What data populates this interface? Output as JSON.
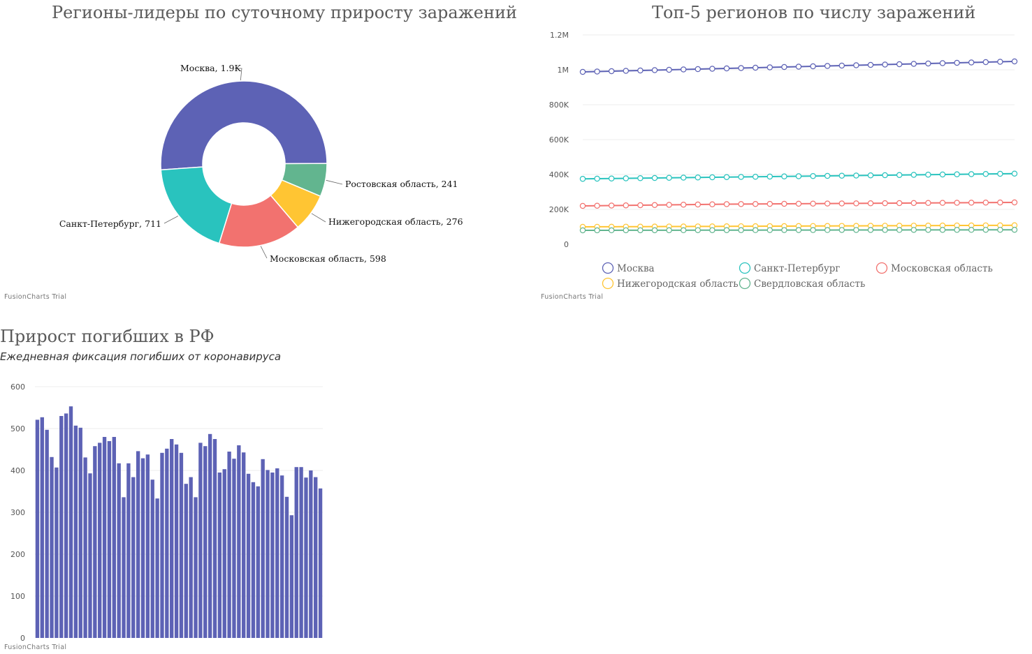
{
  "charts": {
    "donut": {
      "title": "Регионы-лидеры по суточному приросту заражений",
      "trial": "FusionCharts Trial"
    },
    "line": {
      "title": "Топ-5 регионов по числу заражений",
      "trial": "FusionCharts Trial"
    },
    "bar": {
      "title": "Прирост погибших в РФ",
      "subtitle": "Ежедневная фиксация погибших от коронавируса",
      "trial": "FusionCharts Trial"
    }
  },
  "chart_data": [
    {
      "type": "pie",
      "variant": "doughnut",
      "title": "Регионы-лидеры по суточному приросту заражений",
      "slices": [
        {
          "label": "Москва",
          "value": 1900,
          "display": "Москва, 1.9K",
          "color": "#5d62b5"
        },
        {
          "label": "Ростовская область",
          "value": 241,
          "display": "Ростовская область, 241",
          "color": "#62b58f"
        },
        {
          "label": "Нижегородская область",
          "value": 276,
          "display": "Нижегородская область, 276",
          "color": "#ffc533"
        },
        {
          "label": "Московская область",
          "value": 598,
          "display": "Московская область, 598",
          "color": "#f2726f"
        },
        {
          "label": "Санкт-Петербург",
          "value": 711,
          "display": "Санкт-Петербург, 711",
          "color": "#29c3be"
        }
      ]
    },
    {
      "type": "line",
      "title": "Топ-5 регионов по числу заражений",
      "ylim": [
        0,
        1200000
      ],
      "yticks": [
        "0",
        "200K",
        "400K",
        "600K",
        "800K",
        "1M",
        "1.2M"
      ],
      "legend_position": "bottom",
      "series": [
        {
          "name": "Москва",
          "color": "#5d62b5",
          "values": [
            988000,
            990000,
            992000,
            994000,
            996000,
            998000,
            1000000,
            1002000,
            1004000,
            1006000,
            1008000,
            1010000,
            1012000,
            1014000,
            1016000,
            1018000,
            1020000,
            1022000,
            1024000,
            1026000,
            1028000,
            1030000,
            1032000,
            1034000,
            1036000,
            1038000,
            1040000,
            1042000,
            1044000,
            1046000,
            1048000
          ]
        },
        {
          "name": "Санкт-Петербург",
          "color": "#29c3be",
          "values": [
            375000,
            376000,
            377000,
            378000,
            379000,
            380000,
            381000,
            382000,
            383000,
            384000,
            385000,
            386000,
            387000,
            388000,
            389000,
            390000,
            391000,
            392000,
            393000,
            394000,
            395000,
            396000,
            397000,
            398000,
            399000,
            400000,
            401000,
            402000,
            403000,
            404000,
            405000
          ]
        },
        {
          "name": "Московская область",
          "color": "#f2726f",
          "values": [
            220000,
            221000,
            222000,
            223000,
            224000,
            225000,
            226000,
            227000,
            228000,
            229000,
            230000,
            230500,
            231000,
            231500,
            232000,
            232500,
            233000,
            233500,
            234000,
            234500,
            235000,
            235500,
            236000,
            236500,
            237000,
            237500,
            238000,
            238500,
            239000,
            239500,
            240000
          ]
        },
        {
          "name": "Нижегородская область",
          "color": "#ffc533",
          "values": [
            100000,
            100300,
            100600,
            100900,
            101200,
            101500,
            101800,
            102100,
            102400,
            102700,
            103000,
            103300,
            103600,
            103900,
            104200,
            104500,
            104800,
            105100,
            105400,
            105700,
            106000,
            106300,
            106600,
            106900,
            107200,
            107500,
            107800,
            108100,
            108400,
            108700,
            109000
          ]
        },
        {
          "name": "Свердловская область",
          "color": "#62b58f",
          "values": [
            80000,
            80100,
            80200,
            80300,
            80400,
            80500,
            80600,
            80700,
            80800,
            80900,
            81000,
            81100,
            81200,
            81300,
            81400,
            81500,
            81600,
            81700,
            81800,
            81900,
            82000,
            82100,
            82200,
            82300,
            82400,
            82500,
            82600,
            82700,
            82800,
            82900,
            83000
          ]
        }
      ]
    },
    {
      "type": "bar",
      "title": "Прирост погибших в РФ",
      "subtitle": "Ежедневная фиксация погибших от коронавируса",
      "ylim": [
        0,
        600
      ],
      "yticks": [
        "0",
        "100",
        "200",
        "300",
        "400",
        "500",
        "600"
      ],
      "color": "#5d62b5",
      "values": [
        521,
        527,
        497,
        432,
        407,
        530,
        536,
        553,
        507,
        502,
        431,
        393,
        458,
        466,
        480,
        470,
        480,
        417,
        336,
        417,
        384,
        446,
        429,
        438,
        378,
        333,
        442,
        452,
        475,
        462,
        442,
        368,
        384,
        336,
        466,
        458,
        487,
        475,
        395,
        403,
        445,
        428,
        460,
        443,
        392,
        372,
        362,
        427,
        401,
        395,
        405,
        388,
        337,
        293,
        408,
        408,
        383,
        400,
        384,
        357
      ]
    }
  ]
}
